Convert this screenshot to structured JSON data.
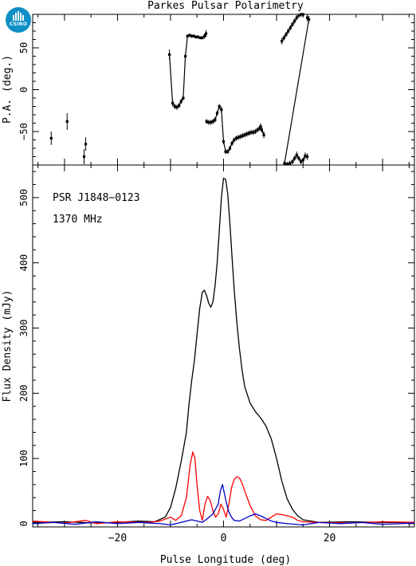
{
  "logo": {
    "text": "CSIRO"
  },
  "chart_data": [
    {
      "type": "scatter",
      "title": "Parkes Pulsar Polarimetry",
      "ylabel": "P.A. (deg.)",
      "xlim": [
        -36,
        36
      ],
      "ylim": [
        -90,
        90
      ],
      "yticks": [
        -50,
        0,
        50
      ],
      "series": [
        {
          "color": "#000000",
          "error_bars": true,
          "points": [
            [
              -32.5,
              -58,
              8
            ],
            [
              -29.5,
              -38,
              10
            ],
            [
              -26.3,
              -80,
              9
            ],
            [
              -26.0,
              -65,
              8
            ],
            [
              -10.2,
              42,
              6
            ],
            [
              -9.6,
              -16,
              4
            ],
            [
              -9.2,
              -20,
              3
            ],
            [
              -8.8,
              -21,
              3
            ],
            [
              -8.4,
              -19,
              3
            ],
            [
              -8.0,
              -14,
              3
            ],
            [
              -7.6,
              -10,
              3
            ],
            [
              -7.2,
              40,
              3
            ],
            [
              -6.8,
              64,
              2
            ],
            [
              -6.4,
              65,
              2
            ],
            [
              -6.0,
              64,
              2
            ],
            [
              -5.6,
              64,
              2
            ],
            [
              -5.2,
              63,
              2
            ],
            [
              -4.8,
              63,
              2
            ],
            [
              -4.4,
              62,
              2
            ],
            [
              -4.0,
              62,
              2
            ],
            [
              -3.6,
              64,
              3
            ],
            [
              -3.3,
              67,
              4
            ],
            [
              -3.2,
              -38,
              3
            ],
            [
              -2.8,
              -39,
              3
            ],
            [
              -2.4,
              -39,
              3
            ],
            [
              -2.0,
              -38,
              3
            ],
            [
              -1.6,
              -36,
              3
            ],
            [
              -1.2,
              -28,
              3
            ],
            [
              -0.8,
              -20,
              3
            ],
            [
              -0.4,
              -24,
              4
            ],
            [
              0.0,
              -62,
              3
            ],
            [
              0.4,
              -74,
              3
            ],
            [
              0.8,
              -74,
              3
            ],
            [
              1.2,
              -70,
              3
            ],
            [
              1.6,
              -64,
              3
            ],
            [
              2.0,
              -60,
              3
            ],
            [
              2.4,
              -58,
              3
            ],
            [
              2.8,
              -57,
              3
            ],
            [
              3.2,
              -56,
              3
            ],
            [
              3.6,
              -55,
              3
            ],
            [
              4.0,
              -54,
              3
            ],
            [
              4.4,
              -53,
              3
            ],
            [
              4.8,
              -52,
              3
            ],
            [
              5.2,
              -51,
              3
            ],
            [
              5.6,
              -51,
              3
            ],
            [
              6.0,
              -50,
              3
            ],
            [
              6.4,
              -48,
              3
            ],
            [
              6.8,
              -46,
              3
            ],
            [
              7.2,
              -48,
              3
            ],
            [
              7.6,
              -54,
              4
            ],
            [
              7.0,
              -44,
              4
            ],
            [
              11.0,
              58,
              4
            ],
            [
              11.4,
              62,
              3
            ],
            [
              11.8,
              66,
              3
            ],
            [
              12.2,
              70,
              3
            ],
            [
              12.6,
              74,
              3
            ],
            [
              13.0,
              78,
              3
            ],
            [
              13.4,
              82,
              3
            ],
            [
              13.8,
              86,
              3
            ],
            [
              14.2,
              89,
              3
            ],
            [
              14.6,
              90,
              3
            ],
            [
              15.0,
              90,
              3
            ],
            [
              15.8,
              86,
              4
            ],
            [
              16.1,
              84,
              4
            ],
            [
              11.5,
              -88,
              3
            ],
            [
              12.0,
              -89,
              3
            ],
            [
              12.5,
              -88,
              3
            ],
            [
              13.0,
              -86,
              3
            ],
            [
              13.4,
              -82,
              3
            ],
            [
              13.8,
              -78,
              4
            ],
            [
              14.2,
              -82,
              3
            ],
            [
              14.6,
              -86,
              3
            ],
            [
              15.0,
              -84,
              3
            ],
            [
              15.4,
              -79,
              4
            ],
            [
              15.8,
              -80,
              4
            ]
          ],
          "connected_runs": [
            [
              4,
              21
            ],
            [
              22,
              49
            ],
            [
              51,
              61
            ],
            [
              63,
              73
            ]
          ]
        }
      ]
    },
    {
      "type": "line",
      "xlabel": "Pulse Longitude (deg)",
      "ylabel": "Flux Density (mJy)",
      "annotations": [
        "PSR J1848−0123",
        "1370 MHz"
      ],
      "xlim": [
        -36,
        36
      ],
      "ylim": [
        -5,
        550
      ],
      "xticks": [
        -20,
        0,
        20
      ],
      "yticks": [
        0,
        100,
        200,
        300,
        400,
        500
      ],
      "series": [
        {
          "color": "#000000",
          "points": [
            [
              -36,
              2
            ],
            [
              -30,
              3
            ],
            [
              -24,
              1
            ],
            [
              -20,
              2
            ],
            [
              -16,
              4
            ],
            [
              -13,
              3
            ],
            [
              -11,
              10
            ],
            [
              -10,
              25
            ],
            [
              -9,
              55
            ],
            [
              -8,
              95
            ],
            [
              -7,
              140
            ],
            [
              -6.5,
              185
            ],
            [
              -6,
              220
            ],
            [
              -5.5,
              250
            ],
            [
              -5,
              290
            ],
            [
              -4.5,
              330
            ],
            [
              -4,
              355
            ],
            [
              -3.6,
              358
            ],
            [
              -3.2,
              350
            ],
            [
              -2.8,
              338
            ],
            [
              -2.4,
              332
            ],
            [
              -2,
              340
            ],
            [
              -1.6,
              365
            ],
            [
              -1.2,
              400
            ],
            [
              -0.8,
              450
            ],
            [
              -0.4,
              500
            ],
            [
              0,
              530
            ],
            [
              0.4,
              528
            ],
            [
              0.8,
              505
            ],
            [
              1.2,
              460
            ],
            [
              1.6,
              410
            ],
            [
              2,
              360
            ],
            [
              2.5,
              310
            ],
            [
              3,
              268
            ],
            [
              3.5,
              235
            ],
            [
              4,
              210
            ],
            [
              5,
              185
            ],
            [
              6,
              172
            ],
            [
              7,
              162
            ],
            [
              8,
              150
            ],
            [
              9,
              130
            ],
            [
              10,
              100
            ],
            [
              11,
              65
            ],
            [
              12,
              38
            ],
            [
              13,
              22
            ],
            [
              14,
              12
            ],
            [
              15,
              6
            ],
            [
              18,
              2
            ],
            [
              24,
              3
            ],
            [
              30,
              2
            ],
            [
              36,
              2
            ]
          ]
        },
        {
          "color": "#ff0000",
          "points": [
            [
              -36,
              4
            ],
            [
              -30,
              1
            ],
            [
              -26,
              5
            ],
            [
              -24,
              0
            ],
            [
              -20,
              3
            ],
            [
              -14,
              2
            ],
            [
              -12,
              4
            ],
            [
              -10,
              10
            ],
            [
              -9,
              5
            ],
            [
              -8,
              12
            ],
            [
              -7,
              40
            ],
            [
              -6.3,
              90
            ],
            [
              -5.8,
              110
            ],
            [
              -5.4,
              100
            ],
            [
              -5,
              60
            ],
            [
              -4.5,
              20
            ],
            [
              -4,
              5
            ],
            [
              -3.5,
              30
            ],
            [
              -3,
              42
            ],
            [
              -2.5,
              35
            ],
            [
              -2,
              20
            ],
            [
              -1.5,
              10
            ],
            [
              -1,
              15
            ],
            [
              -0.5,
              30
            ],
            [
              0,
              22
            ],
            [
              0.5,
              10
            ],
            [
              1,
              30
            ],
            [
              1.5,
              55
            ],
            [
              2,
              68
            ],
            [
              2.5,
              72
            ],
            [
              3,
              70
            ],
            [
              3.5,
              62
            ],
            [
              4,
              50
            ],
            [
              5,
              28
            ],
            [
              6,
              12
            ],
            [
              7,
              6
            ],
            [
              8,
              5
            ],
            [
              9,
              10
            ],
            [
              10,
              15
            ],
            [
              11,
              14
            ],
            [
              12,
              12
            ],
            [
              13,
              10
            ],
            [
              14,
              5
            ],
            [
              15,
              3
            ],
            [
              18,
              2
            ],
            [
              24,
              1
            ],
            [
              30,
              3
            ],
            [
              36,
              2
            ]
          ]
        },
        {
          "color": "#0000cc",
          "points": [
            [
              -36,
              0
            ],
            [
              -32,
              2
            ],
            [
              -28,
              -1
            ],
            [
              -24,
              3
            ],
            [
              -20,
              0
            ],
            [
              -16,
              2
            ],
            [
              -12,
              0
            ],
            [
              -10,
              -2
            ],
            [
              -8,
              2
            ],
            [
              -6,
              6
            ],
            [
              -5,
              4
            ],
            [
              -4,
              2
            ],
            [
              -3,
              8
            ],
            [
              -2,
              15
            ],
            [
              -1,
              30
            ],
            [
              -0.6,
              50
            ],
            [
              -0.2,
              60
            ],
            [
              0.2,
              45
            ],
            [
              0.6,
              30
            ],
            [
              1,
              18
            ],
            [
              1.5,
              10
            ],
            [
              2,
              5
            ],
            [
              3,
              4
            ],
            [
              4,
              8
            ],
            [
              5,
              12
            ],
            [
              6,
              15
            ],
            [
              7,
              12
            ],
            [
              8,
              8
            ],
            [
              9,
              4
            ],
            [
              10,
              2
            ],
            [
              12,
              0
            ],
            [
              15,
              -2
            ],
            [
              18,
              2
            ],
            [
              22,
              0
            ],
            [
              26,
              2
            ],
            [
              30,
              -1
            ],
            [
              36,
              1
            ]
          ]
        }
      ]
    }
  ]
}
